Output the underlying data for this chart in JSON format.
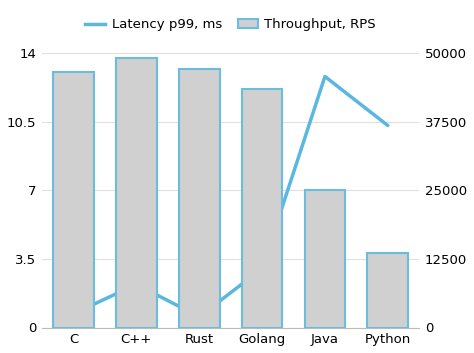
{
  "categories": [
    "C",
    "C++",
    "Rust",
    "Golang",
    "Java",
    "Python"
  ],
  "throughput": [
    46500,
    49000,
    47000,
    43500,
    25000,
    13500
  ],
  "latency": [
    0.7,
    2.2,
    0.55,
    3.0,
    12.8,
    10.3
  ],
  "bar_color": "#d0d0d0",
  "bar_edge_color": "#6bbde0",
  "line_color": "#5ab8e0",
  "left_ylim": [
    0,
    14
  ],
  "right_ylim": [
    0,
    50000
  ],
  "left_yticks": [
    0,
    3.5,
    7,
    10.5,
    14
  ],
  "right_yticks": [
    0,
    12500,
    25000,
    37500,
    50000
  ],
  "legend_line_label": "Latency p99, ms",
  "legend_bar_label": "Throughput, RPS",
  "background_color": "#ffffff",
  "grid_color": "#e0e0e0"
}
